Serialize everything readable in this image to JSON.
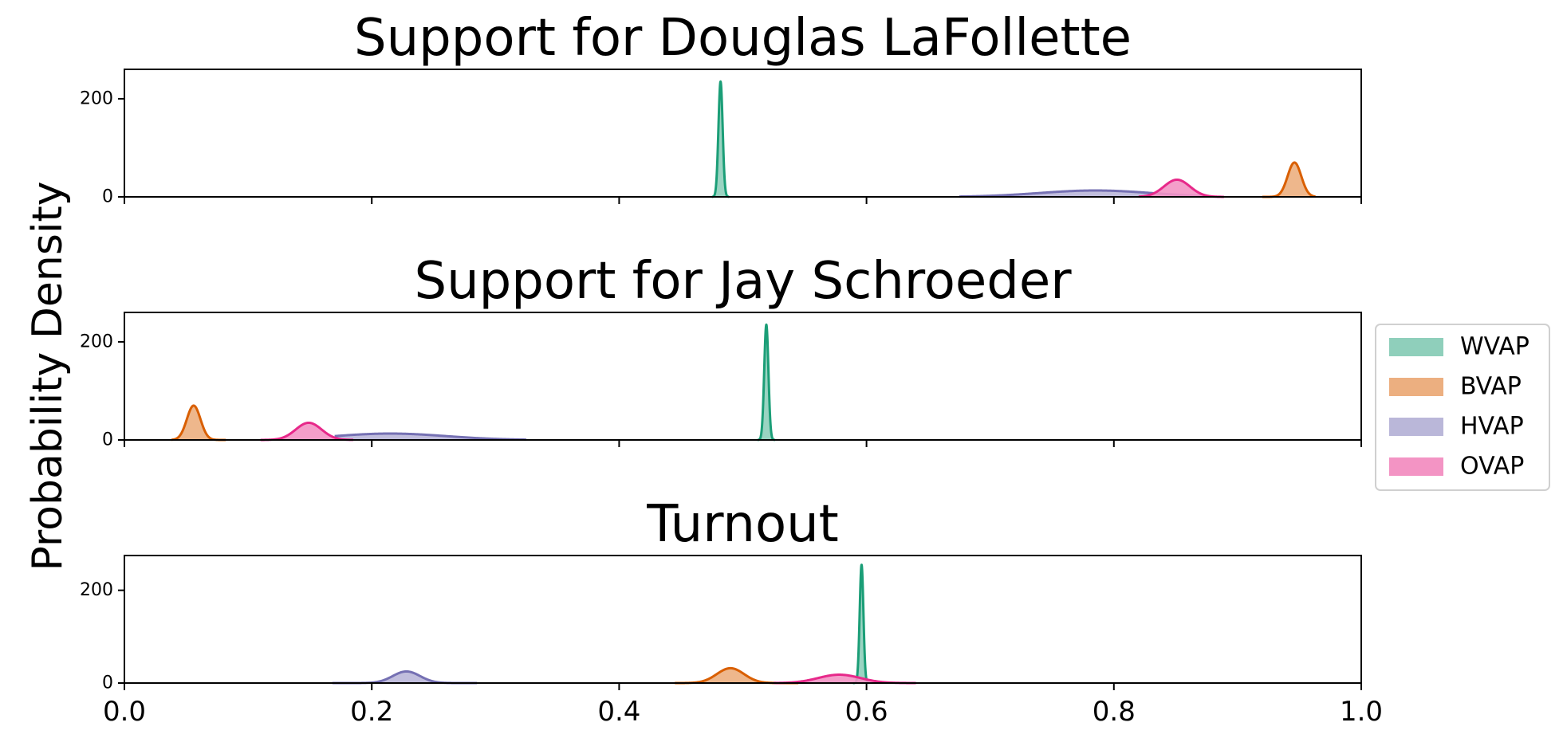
{
  "chart_data": {
    "type": "area",
    "ylabel": "Probability Density",
    "xlim": [
      0,
      1
    ],
    "xticks": [
      0.0,
      0.2,
      0.4,
      0.6,
      0.8,
      1.0
    ],
    "xtick_labels": [
      "0.0",
      "0.2",
      "0.4",
      "0.6",
      "0.8",
      "1.0"
    ],
    "legend": {
      "position": "center-right, outside",
      "entries": [
        {
          "label": "WVAP",
          "color": "#1b9e77",
          "fill": "#8fcfbb"
        },
        {
          "label": "BVAP",
          "color": "#d95f02",
          "fill": "#ecaf80"
        },
        {
          "label": "HVAP",
          "color": "#7570b3",
          "fill": "#bab7d9"
        },
        {
          "label": "OVAP",
          "color": "#e7298a",
          "fill": "#f394c4"
        }
      ]
    },
    "panels": [
      {
        "title": "Support for Douglas LaFollette",
        "ylim": [
          0,
          260
        ],
        "yticks": [
          0,
          200
        ],
        "ytick_labels": [
          "0",
          "200"
        ],
        "series": [
          {
            "name": "WVAP",
            "center": 0.482,
            "sd": 0.0017,
            "peak": 235,
            "min": 0.475,
            "max": 0.489
          },
          {
            "name": "BVAP",
            "center": 0.946,
            "sd": 0.0055,
            "peak": 70,
            "min": 0.92,
            "max": 0.963
          },
          {
            "name": "HVAP",
            "center": 0.785,
            "sd": 0.045,
            "peak": 13,
            "min": 0.675,
            "max": 0.875
          },
          {
            "name": "OVAP",
            "center": 0.851,
            "sd": 0.0105,
            "peak": 35,
            "min": 0.82,
            "max": 0.889
          }
        ]
      },
      {
        "title": "Support for Jay Schroeder",
        "ylim": [
          0,
          260
        ],
        "yticks": [
          0,
          200
        ],
        "ytick_labels": [
          "0",
          "200"
        ],
        "series": [
          {
            "name": "WVAP",
            "center": 0.519,
            "sd": 0.0017,
            "peak": 235,
            "min": 0.512,
            "max": 0.526
          },
          {
            "name": "BVAP",
            "center": 0.056,
            "sd": 0.0055,
            "peak": 70,
            "min": 0.038,
            "max": 0.082
          },
          {
            "name": "HVAP",
            "center": 0.215,
            "sd": 0.045,
            "peak": 13,
            "min": 0.17,
            "max": 0.325
          },
          {
            "name": "OVAP",
            "center": 0.149,
            "sd": 0.0105,
            "peak": 35,
            "min": 0.11,
            "max": 0.185
          }
        ]
      },
      {
        "title": "Turnout",
        "ylim": [
          0,
          275
        ],
        "yticks": [
          0,
          200
        ],
        "ytick_labels": [
          "0",
          "200"
        ],
        "series": [
          {
            "name": "WVAP",
            "center": 0.596,
            "sd": 0.0015,
            "peak": 255,
            "min": 0.589,
            "max": 0.602
          },
          {
            "name": "BVAP",
            "center": 0.49,
            "sd": 0.011,
            "peak": 32,
            "min": 0.445,
            "max": 0.545
          },
          {
            "name": "HVAP",
            "center": 0.228,
            "sd": 0.011,
            "peak": 25,
            "min": 0.168,
            "max": 0.285
          },
          {
            "name": "OVAP",
            "center": 0.578,
            "sd": 0.017,
            "peak": 18,
            "min": 0.525,
            "max": 0.64
          }
        ]
      }
    ]
  }
}
